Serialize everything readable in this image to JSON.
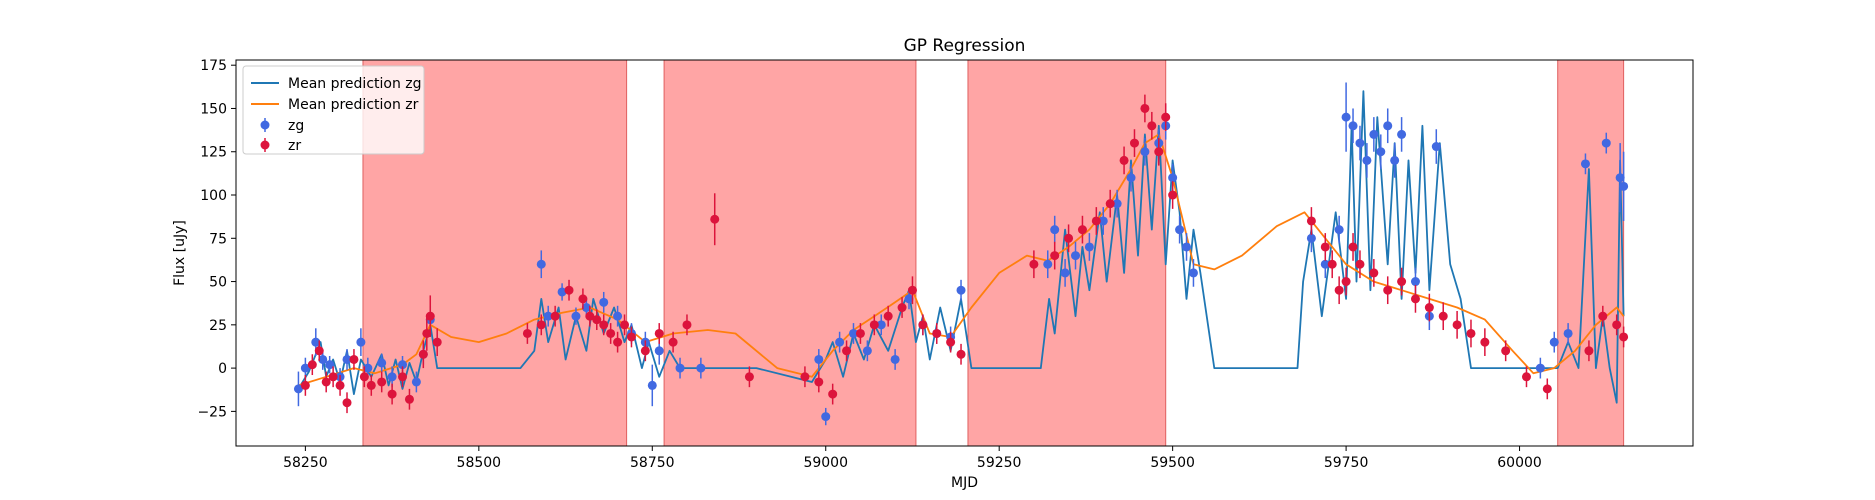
{
  "chart_data": {
    "type": "scatter",
    "title": "GP Regression",
    "xlabel": "MJD",
    "ylabel": "Flux [uJy]",
    "xlim": [
      58150,
      60250
    ],
    "ylim": [
      -45,
      178
    ],
    "xticks": [
      58250,
      58500,
      58750,
      59000,
      59250,
      59500,
      59750,
      60000
    ],
    "yticks": [
      -25,
      0,
      25,
      50,
      75,
      100,
      125,
      150,
      175
    ],
    "grid": false,
    "legend_position": "top-left",
    "colors": {
      "mean_zg": "#1f77b4",
      "mean_zr": "#ff7f0e",
      "zg": "#4169e1",
      "zr": "#dc143c",
      "shade": "#ff6464"
    },
    "shaded_regions": [
      [
        58333,
        58713
      ],
      [
        58767,
        59130
      ],
      [
        59205,
        59490
      ],
      [
        60055,
        60150
      ]
    ],
    "legend": [
      "Mean prediction zg",
      "Mean prediction zr",
      "zg",
      "zr"
    ],
    "series": [
      {
        "name": "Mean prediction zg",
        "kind": "line",
        "x": [
          58240,
          58255,
          58265,
          58272,
          58280,
          58290,
          58300,
          58310,
          58320,
          58330,
          58345,
          58360,
          58370,
          58380,
          58390,
          58400,
          58410,
          58420,
          58430,
          58440,
          58480,
          58560,
          58580,
          58590,
          58600,
          58615,
          58625,
          58640,
          58655,
          58665,
          58680,
          58695,
          58710,
          58720,
          58735,
          58745,
          58760,
          58775,
          58790,
          58820,
          58850,
          58900,
          58950,
          58980,
          59000,
          59010,
          59025,
          59040,
          59055,
          59070,
          59090,
          59110,
          59120,
          59130,
          59140,
          59150,
          59165,
          59180,
          59195,
          59210,
          59230,
          59310,
          59322,
          59330,
          59345,
          59360,
          59370,
          59380,
          59395,
          59405,
          59420,
          59430,
          59440,
          59450,
          59460,
          59470,
          59480,
          59490,
          59500,
          59510,
          59520,
          59530,
          59540,
          59560,
          59680,
          59688,
          59700,
          59715,
          59735,
          59750,
          59758,
          59765,
          59775,
          59785,
          59795,
          59810,
          59820,
          59830,
          59840,
          59850,
          59860,
          59870,
          59885,
          59900,
          59915,
          59930,
          59940,
          59950,
          59960,
          59970,
          59985,
          60000,
          60020,
          60040,
          60055,
          60070,
          60085,
          60100,
          60110,
          60120,
          60130,
          60140,
          60145,
          60150
        ],
        "y": [
          -12,
          -2,
          8,
          15,
          -5,
          5,
          -8,
          10,
          -15,
          5,
          -5,
          8,
          -10,
          5,
          -12,
          3,
          -8,
          10,
          25,
          0,
          0,
          0,
          10,
          40,
          15,
          35,
          5,
          30,
          10,
          40,
          20,
          35,
          15,
          25,
          0,
          15,
          -5,
          10,
          0,
          0,
          0,
          0,
          -5,
          -8,
          5,
          15,
          -5,
          20,
          5,
          25,
          10,
          35,
          45,
          15,
          30,
          5,
          35,
          10,
          40,
          0,
          0,
          0,
          40,
          20,
          80,
          30,
          70,
          45,
          90,
          50,
          100,
          55,
          120,
          65,
          135,
          80,
          140,
          60,
          120,
          90,
          40,
          80,
          55,
          0,
          0,
          50,
          80,
          30,
          90,
          40,
          140,
          50,
          160,
          45,
          145,
          60,
          130,
          40,
          120,
          55,
          140,
          45,
          130,
          60,
          40,
          0,
          0,
          0,
          0,
          0,
          0,
          0,
          0,
          0,
          0,
          15,
          0,
          115,
          0,
          30,
          0,
          -20,
          120,
          30
        ]
      },
      {
        "name": "Mean prediction zr",
        "kind": "line",
        "x": [
          58240,
          58280,
          58320,
          58350,
          58390,
          58410,
          58430,
          58460,
          58500,
          58540,
          58580,
          58620,
          58660,
          58700,
          58740,
          58780,
          58830,
          58870,
          58930,
          58980,
          59010,
          59040,
          59070,
          59100,
          59125,
          59150,
          59180,
          59210,
          59250,
          59290,
          59320,
          59350,
          59380,
          59410,
          59440,
          59460,
          59480,
          59500,
          59530,
          59560,
          59600,
          59650,
          59690,
          59720,
          59750,
          59790,
          59830,
          59870,
          59910,
          59950,
          59990,
          60020,
          60050,
          60080,
          60110,
          60140,
          60150
        ],
        "y": [
          -10,
          -5,
          0,
          -3,
          2,
          8,
          25,
          18,
          15,
          20,
          28,
          32,
          35,
          28,
          15,
          20,
          22,
          20,
          0,
          -5,
          10,
          22,
          30,
          38,
          45,
          20,
          18,
          35,
          55,
          65,
          62,
          70,
          80,
          95,
          115,
          130,
          135,
          110,
          60,
          57,
          65,
          82,
          90,
          75,
          60,
          50,
          45,
          40,
          35,
          28,
          10,
          -3,
          0,
          10,
          25,
          35,
          30
        ]
      },
      {
        "name": "zg",
        "kind": "errorbar",
        "x": [
          58240,
          58250,
          58265,
          58275,
          58285,
          58300,
          58310,
          58330,
          58340,
          58360,
          58375,
          58390,
          58410,
          58420,
          58430,
          58590,
          58600,
          58620,
          58640,
          58655,
          58680,
          58700,
          58720,
          58740,
          58750,
          58760,
          58790,
          58820,
          58990,
          59000,
          59020,
          59040,
          59060,
          59080,
          59100,
          59120,
          59140,
          59160,
          59180,
          59195,
          59320,
          59330,
          59345,
          59360,
          59380,
          59400,
          59420,
          59440,
          59460,
          59480,
          59490,
          59500,
          59510,
          59520,
          59530,
          59700,
          59720,
          59740,
          59750,
          59760,
          59770,
          59780,
          59790,
          59800,
          59810,
          59820,
          59830,
          59850,
          59870,
          59880,
          60030,
          60050,
          60070,
          60095,
          60125,
          60145,
          60150
        ],
        "y": [
          -12,
          0,
          15,
          5,
          2,
          -5,
          5,
          15,
          0,
          3,
          -5,
          2,
          -8,
          8,
          28,
          60,
          30,
          44,
          30,
          35,
          38,
          30,
          20,
          15,
          -10,
          10,
          0,
          0,
          5,
          -28,
          15,
          20,
          10,
          25,
          5,
          40,
          25,
          20,
          18,
          45,
          60,
          80,
          55,
          65,
          70,
          85,
          95,
          110,
          125,
          130,
          140,
          110,
          80,
          70,
          55,
          75,
          60,
          80,
          145,
          140,
          130,
          120,
          135,
          125,
          140,
          120,
          135,
          50,
          30,
          128,
          0,
          15,
          20,
          118,
          130,
          110,
          105
        ],
        "err": [
          10,
          6,
          8,
          6,
          5,
          5,
          6,
          8,
          6,
          5,
          6,
          5,
          6,
          6,
          8,
          8,
          6,
          5,
          5,
          6,
          6,
          6,
          6,
          6,
          12,
          8,
          6,
          6,
          6,
          5,
          6,
          6,
          6,
          6,
          6,
          6,
          6,
          6,
          6,
          6,
          8,
          8,
          8,
          8,
          8,
          8,
          8,
          8,
          8,
          8,
          8,
          8,
          8,
          8,
          8,
          8,
          8,
          8,
          20,
          10,
          10,
          10,
          10,
          10,
          10,
          10,
          10,
          8,
          8,
          10,
          6,
          6,
          6,
          6,
          6,
          20,
          20
        ]
      },
      {
        "name": "zr",
        "kind": "errorbar",
        "x": [
          58250,
          58260,
          58270,
          58280,
          58290,
          58300,
          58310,
          58320,
          58335,
          58345,
          58360,
          58375,
          58390,
          58400,
          58420,
          58425,
          58430,
          58440,
          58570,
          58590,
          58610,
          58630,
          58650,
          58660,
          58670,
          58680,
          58690,
          58700,
          58710,
          58720,
          58740,
          58760,
          58780,
          58800,
          58840,
          58890,
          58970,
          58990,
          59010,
          59030,
          59050,
          59070,
          59090,
          59110,
          59125,
          59140,
          59160,
          59180,
          59195,
          59300,
          59330,
          59350,
          59370,
          59390,
          59410,
          59430,
          59445,
          59460,
          59470,
          59480,
          59490,
          59500,
          59700,
          59720,
          59730,
          59740,
          59750,
          59760,
          59770,
          59790,
          59810,
          59830,
          59850,
          59870,
          59890,
          59910,
          59930,
          59950,
          59980,
          60010,
          60040,
          60100,
          60120,
          60140,
          60150
        ],
        "y": [
          -10,
          2,
          10,
          -8,
          -5,
          -10,
          -20,
          5,
          -5,
          -10,
          -8,
          -15,
          -5,
          -18,
          8,
          20,
          30,
          15,
          20,
          25,
          30,
          45,
          40,
          30,
          28,
          25,
          20,
          15,
          25,
          18,
          10,
          20,
          15,
          25,
          86,
          -5,
          -5,
          -8,
          -15,
          10,
          20,
          25,
          30,
          35,
          45,
          25,
          20,
          15,
          8,
          60,
          65,
          75,
          80,
          85,
          95,
          120,
          130,
          150,
          140,
          125,
          145,
          100,
          85,
          70,
          60,
          45,
          50,
          70,
          60,
          55,
          45,
          50,
          40,
          35,
          30,
          25,
          20,
          15,
          10,
          -5,
          -12,
          10,
          30,
          25,
          18
        ],
        "err": [
          6,
          6,
          6,
          6,
          6,
          6,
          6,
          6,
          6,
          6,
          6,
          6,
          6,
          6,
          8,
          10,
          12,
          8,
          6,
          6,
          6,
          6,
          6,
          6,
          6,
          6,
          6,
          6,
          6,
          6,
          6,
          6,
          6,
          6,
          15,
          6,
          6,
          6,
          6,
          6,
          6,
          6,
          6,
          6,
          8,
          6,
          6,
          6,
          6,
          8,
          8,
          8,
          8,
          8,
          8,
          8,
          8,
          8,
          8,
          8,
          8,
          8,
          8,
          8,
          8,
          8,
          8,
          8,
          8,
          8,
          8,
          8,
          8,
          8,
          8,
          8,
          8,
          8,
          6,
          6,
          6,
          6,
          6,
          6,
          6
        ]
      }
    ]
  }
}
